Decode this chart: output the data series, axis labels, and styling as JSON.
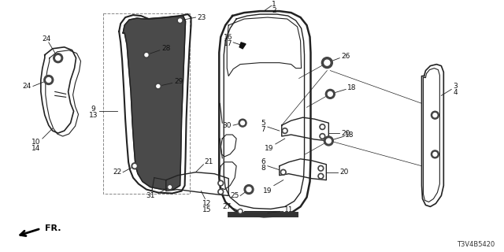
{
  "background_color": "#ffffff",
  "diagram_code": "T3V4B5420",
  "line_color": "#222222",
  "text_color": "#111111",
  "font_size": 6.5
}
